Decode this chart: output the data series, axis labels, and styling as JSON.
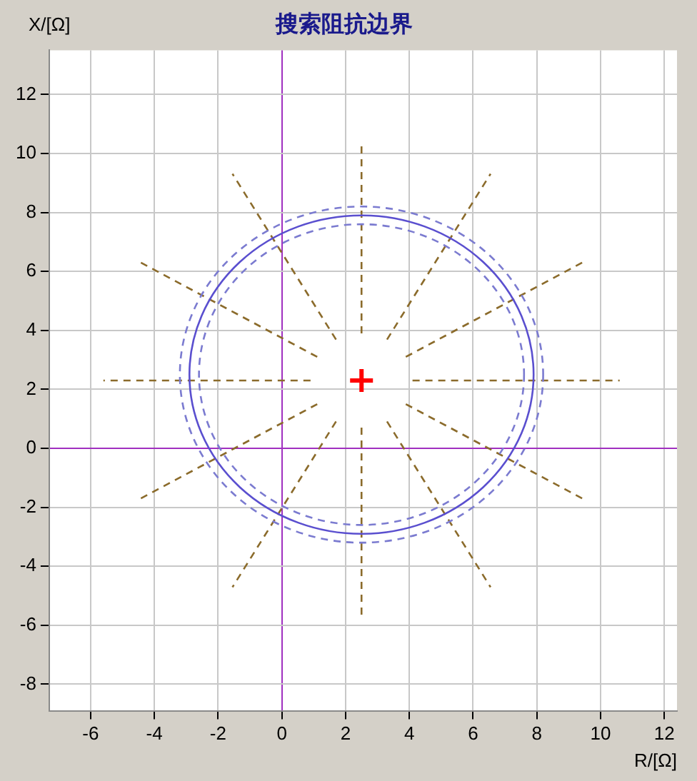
{
  "chart_data": {
    "type": "line",
    "title": "搜索阻抗边界",
    "xlabel": "R/[Ω]",
    "ylabel": "X/[Ω]",
    "xlim": [
      -7.3,
      12.4
    ],
    "ylim": [
      -8.9,
      13.5
    ],
    "xticks": [
      -6,
      -4,
      -2,
      0,
      2,
      4,
      6,
      8,
      10,
      12
    ],
    "yticks": [
      -8,
      -6,
      -4,
      -2,
      0,
      2,
      4,
      6,
      8,
      10,
      12
    ],
    "grid": true,
    "series": [
      {
        "type": "line",
        "color": "#8b6b2b",
        "line_style": "dashed",
        "marker": "none",
        "x": [
          4.1,
          10.6
        ],
        "values": [
          2.3,
          2.3
        ]
      },
      {
        "type": "line",
        "color": "#8b6b2b",
        "line_style": "dashed",
        "marker": "none",
        "x": [
          3.89,
          9.51
        ],
        "values": [
          3.1,
          6.35
        ]
      },
      {
        "type": "line",
        "color": "#8b6b2b",
        "line_style": "dashed",
        "marker": "none",
        "x": [
          3.3,
          6.55
        ],
        "values": [
          3.69,
          9.31
        ]
      },
      {
        "type": "line",
        "color": "#8b6b2b",
        "line_style": "dashed",
        "marker": "none",
        "x": [
          2.5,
          2.5
        ],
        "values": [
          3.9,
          10.4
        ]
      },
      {
        "type": "line",
        "color": "#8b6b2b",
        "line_style": "dashed",
        "marker": "none",
        "x": [
          1.7,
          -1.55
        ],
        "values": [
          3.69,
          9.31
        ]
      },
      {
        "type": "line",
        "color": "#8b6b2b",
        "line_style": "dashed",
        "marker": "none",
        "x": [
          1.11,
          -4.51
        ],
        "values": [
          3.1,
          6.35
        ]
      },
      {
        "type": "line",
        "color": "#8b6b2b",
        "line_style": "dashed",
        "marker": "none",
        "x": [
          0.9,
          -5.6
        ],
        "values": [
          2.3,
          2.3
        ]
      },
      {
        "type": "line",
        "color": "#8b6b2b",
        "line_style": "dashed",
        "marker": "none",
        "x": [
          1.11,
          -4.51
        ],
        "values": [
          1.5,
          -1.75
        ]
      },
      {
        "type": "line",
        "color": "#8b6b2b",
        "line_style": "dashed",
        "marker": "none",
        "x": [
          1.7,
          -1.55
        ],
        "values": [
          0.91,
          -4.71
        ]
      },
      {
        "type": "line",
        "color": "#8b6b2b",
        "line_style": "dashed",
        "marker": "none",
        "x": [
          2.5,
          2.5
        ],
        "values": [
          0.7,
          -5.8
        ]
      },
      {
        "type": "line",
        "color": "#8b6b2b",
        "line_style": "dashed",
        "marker": "none",
        "x": [
          3.3,
          6.55
        ],
        "values": [
          0.91,
          -4.71
        ]
      },
      {
        "type": "line",
        "color": "#8b6b2b",
        "line_style": "dashed",
        "marker": "none",
        "x": [
          3.89,
          9.51
        ],
        "values": [
          1.5,
          -1.75
        ]
      },
      {
        "type": "scatter",
        "color": "#ff0000",
        "marker": "cross",
        "x": [
          2.5
        ],
        "values": [
          2.3
        ]
      }
    ]
  }
}
